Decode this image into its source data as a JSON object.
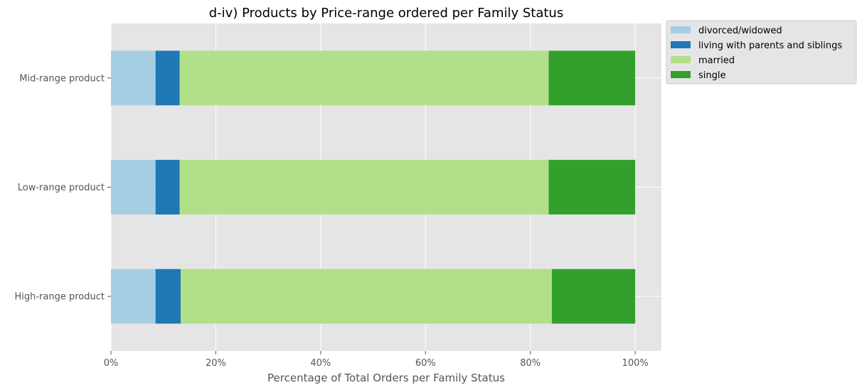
{
  "chart_data": {
    "type": "bar",
    "orientation": "horizontal",
    "stacked": true,
    "title": "d-iv) Products by Price-range ordered per Family Status",
    "xlabel": "Percentage of Total Orders per Family Status",
    "ylabel": "",
    "xlim": [
      0,
      1.05
    ],
    "xticks": [
      0,
      0.2,
      0.4,
      0.6,
      0.8,
      1.0
    ],
    "xtick_labels": [
      "0%",
      "20%",
      "40%",
      "60%",
      "80%",
      "100%"
    ],
    "categories": [
      "High-range product",
      "Low-range product",
      "Mid-range product"
    ],
    "series": [
      {
        "name": "divorced/widowed",
        "color": "#a6cee3",
        "values": [
          0.085,
          0.085,
          0.085
        ]
      },
      {
        "name": "living with parents and siblings",
        "color": "#1f78b4",
        "values": [
          0.048,
          0.046,
          0.046
        ]
      },
      {
        "name": "married",
        "color": "#b2df8a",
        "values": [
          0.708,
          0.704,
          0.704
        ]
      },
      {
        "name": "single",
        "color": "#33a02c",
        "values": [
          0.159,
          0.165,
          0.165
        ]
      }
    ],
    "grid": true,
    "legend_position": "outside-upper-right",
    "background": "#e5e5e5"
  }
}
